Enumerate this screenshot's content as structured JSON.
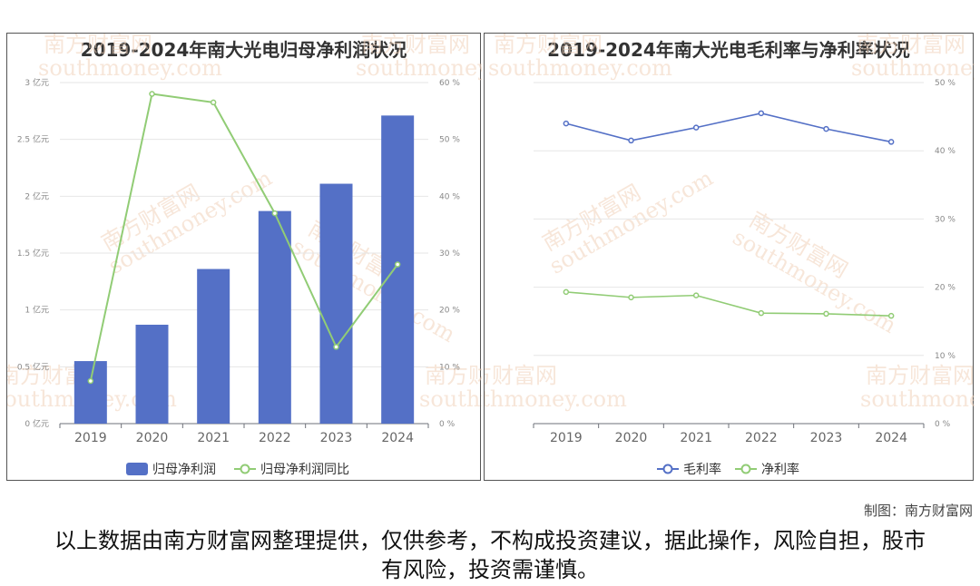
{
  "chart_data": [
    {
      "type": "bar",
      "title": "2019-2024年南大光电归母净利润状况",
      "categories": [
        "2019",
        "2020",
        "2021",
        "2022",
        "2023",
        "2024"
      ],
      "series": [
        {
          "name": "归母净利润",
          "type": "bar",
          "axis": "left",
          "unit": "亿元",
          "values": [
            0.55,
            0.87,
            1.36,
            1.87,
            2.11,
            2.71
          ],
          "color": "#5470c6"
        },
        {
          "name": "归母净利润同比",
          "type": "line",
          "axis": "right",
          "unit": "%",
          "values": [
            7.5,
            58.0,
            56.5,
            37.0,
            13.5,
            28.0
          ],
          "color": "#91cc75"
        }
      ],
      "y_left": {
        "min": 0,
        "max": 3,
        "ticks": [
          "0 亿元",
          "0.5 亿元",
          "1 亿元",
          "1.5 亿元",
          "2 亿元",
          "2.5 亿元",
          "3 亿元"
        ]
      },
      "y_right": {
        "min": 0,
        "max": 60,
        "ticks": [
          "0 %",
          "10 %",
          "20 %",
          "30 %",
          "40 %",
          "50 %",
          "60 %"
        ]
      },
      "legend_position": "bottom-center",
      "grid": true
    },
    {
      "type": "line",
      "title": "2019-2024年南大光电毛利率与净利率状况",
      "categories": [
        "2019",
        "2020",
        "2021",
        "2022",
        "2023",
        "2024"
      ],
      "series": [
        {
          "name": "毛利率",
          "unit": "%",
          "values": [
            44.0,
            41.5,
            43.4,
            45.5,
            43.2,
            41.3
          ],
          "color": "#5470c6"
        },
        {
          "name": "净利率",
          "unit": "%",
          "values": [
            19.3,
            18.5,
            18.8,
            16.2,
            16.1,
            15.8
          ],
          "color": "#91cc75"
        }
      ],
      "y_right": {
        "min": 0,
        "max": 50,
        "ticks": [
          "0 %",
          "10 %",
          "20 %",
          "30 %",
          "40 %",
          "50 %"
        ]
      },
      "legend_position": "bottom-center",
      "grid": true
    }
  ],
  "watermark": {
    "brand": "南方财富网",
    "domain": "southmoney.com"
  },
  "credit": "制图：南方财富网",
  "disclaimer": "以上数据由南方财富网整理提供，仅供参考，不构成投资建议，据此操作，风险自担，股市有风险，投资需谨慎。"
}
